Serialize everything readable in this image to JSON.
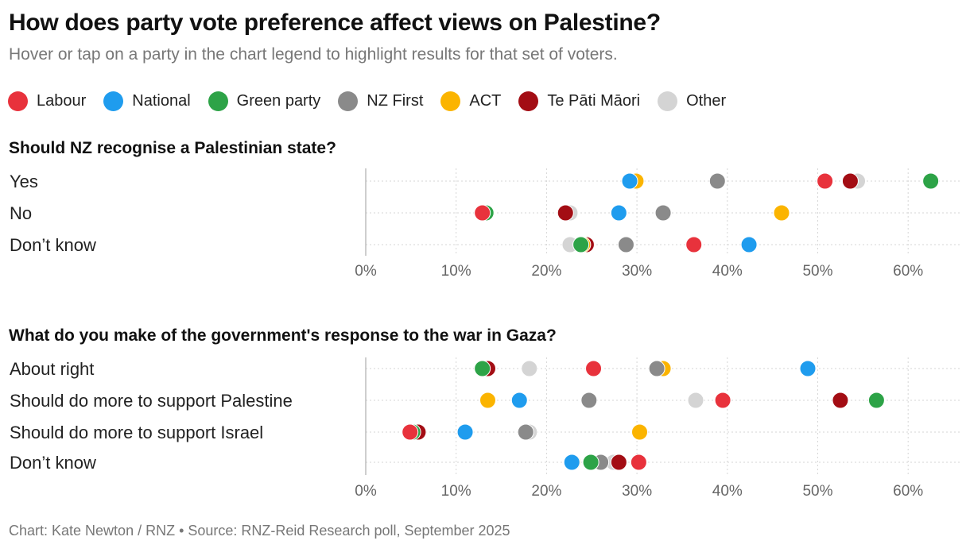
{
  "title": "How does party vote preference affect views on Palestine?",
  "subtitle": "Hover or tap on a party in the chart legend to highlight results for that set of voters.",
  "legend": [
    {
      "name": "Labour",
      "color": "#e8323c"
    },
    {
      "name": "National",
      "color": "#1f9cee"
    },
    {
      "name": "Green party",
      "color": "#2da347"
    },
    {
      "name": "NZ First",
      "color": "#8a8a8a"
    },
    {
      "name": "ACT",
      "color": "#fbb400"
    },
    {
      "name": "Te Pāti Māori",
      "color": "#a30d14"
    },
    {
      "name": "Other",
      "color": "#d4d4d4"
    }
  ],
  "footer": "Chart: Kate Newton / RNZ  •  Source: RNZ-Reid Research poll, September 2025",
  "chart_data": [
    {
      "type": "scatter",
      "title": "Should NZ recognise a Palestinian state?",
      "categories": [
        "Yes",
        "No",
        "Don’t know"
      ],
      "xlim": [
        0,
        65
      ],
      "xticks": [
        "0%",
        "10%",
        "20%",
        "30%",
        "40%",
        "50%",
        "60%"
      ],
      "series": [
        {
          "name": "Labour",
          "values": [
            50.8,
            12.9,
            36.3
          ]
        },
        {
          "name": "National",
          "values": [
            29.2,
            28.0,
            42.4
          ]
        },
        {
          "name": "Green party",
          "values": [
            62.5,
            13.3,
            23.8
          ]
        },
        {
          "name": "NZ First",
          "values": [
            38.9,
            32.9,
            28.8
          ]
        },
        {
          "name": "ACT",
          "values": [
            29.9,
            46.0,
            24.0
          ]
        },
        {
          "name": "Te Pāti Māori",
          "values": [
            53.6,
            22.1,
            24.4
          ]
        },
        {
          "name": "Other",
          "values": [
            54.4,
            22.6,
            22.6
          ]
        }
      ]
    },
    {
      "type": "scatter",
      "title": "What do you make of the government's response to the war in Gaza?",
      "categories": [
        "About right",
        "Should do more to support Palestine",
        "Should do more to support Israel",
        "Don’t know"
      ],
      "xlim": [
        0,
        65
      ],
      "xticks": [
        "0%",
        "10%",
        "20%",
        "30%",
        "40%",
        "50%",
        "60%"
      ],
      "series": [
        {
          "name": "Labour",
          "values": [
            25.2,
            39.5,
            4.9,
            30.2
          ]
        },
        {
          "name": "National",
          "values": [
            48.9,
            17.0,
            11.0,
            22.8
          ]
        },
        {
          "name": "Green party",
          "values": [
            12.9,
            56.5,
            5.2,
            24.9
          ]
        },
        {
          "name": "NZ First",
          "values": [
            32.2,
            24.7,
            17.7,
            26.0
          ]
        },
        {
          "name": "ACT",
          "values": [
            32.9,
            13.5,
            30.3,
            22.9
          ]
        },
        {
          "name": "Te Pāti Māori",
          "values": [
            13.5,
            52.5,
            5.8,
            28.0
          ]
        },
        {
          "name": "Other",
          "values": [
            18.1,
            36.5,
            18.1,
            27.4
          ]
        }
      ]
    }
  ]
}
